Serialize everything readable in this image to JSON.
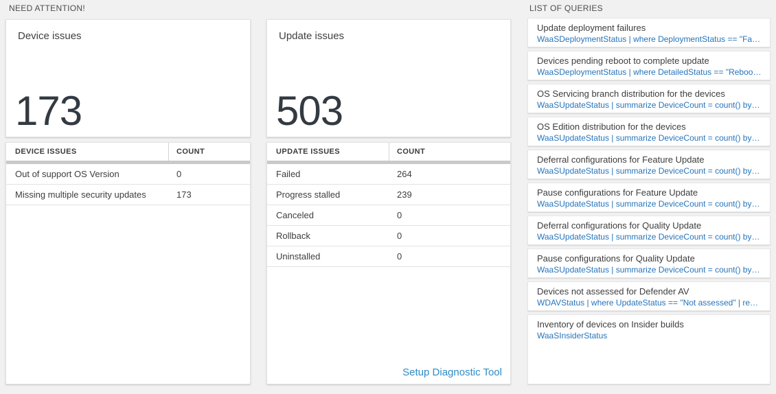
{
  "need_attention": {
    "section_title": "NEED ATTENTION!",
    "device_card": {
      "title": "Device issues",
      "count": "173"
    },
    "device_table": {
      "headers": [
        "DEVICE ISSUES",
        "COUNT"
      ],
      "rows": [
        [
          "Out of support OS Version",
          "0"
        ],
        [
          "Missing multiple security updates",
          "173"
        ]
      ]
    },
    "update_card": {
      "title": "Update issues",
      "count": "503"
    },
    "update_table": {
      "headers": [
        "UPDATE ISSUES",
        "COUNT"
      ],
      "rows": [
        [
          "Failed",
          "264"
        ],
        [
          "Progress stalled",
          "239"
        ],
        [
          "Canceled",
          "0"
        ],
        [
          "Rollback",
          "0"
        ],
        [
          "Uninstalled",
          "0"
        ]
      ]
    },
    "setup_link": "Setup Diagnostic Tool"
  },
  "queries": {
    "section_title": "LIST OF QUERIES",
    "items": [
      {
        "title": "Update deployment failures",
        "query": "WaaSDeploymentStatus | where DeploymentStatus == \"Failed\" |..."
      },
      {
        "title": "Devices pending reboot to complete update",
        "query": "WaaSDeploymentStatus | where DetailedStatus == \"Reboot pend..."
      },
      {
        "title": "OS Servicing branch distribution for the devices",
        "query": "WaaSUpdateStatus | summarize DeviceCount = count() by OSSer..."
      },
      {
        "title": "OS Edition distribution for the devices",
        "query": "WaaSUpdateStatus | summarize DeviceCount = count() by OSEdit..."
      },
      {
        "title": "Deferral configurations for Feature Update",
        "query": "WaaSUpdateStatus | summarize DeviceCount = count() by Featur..."
      },
      {
        "title": "Pause configurations for Feature Update",
        "query": "WaaSUpdateStatus | summarize DeviceCount = count() by Featur..."
      },
      {
        "title": "Deferral configurations for Quality Update",
        "query": "WaaSUpdateStatus | summarize DeviceCount = count() by Qualit..."
      },
      {
        "title": "Pause configurations for Quality Update",
        "query": "WaaSUpdateStatus | summarize DeviceCount = count() by Qualit..."
      },
      {
        "title": "Devices not assessed for Defender AV",
        "query": "WDAVStatus | where UpdateStatus == \"Not assessed\" | render ta..."
      },
      {
        "title": "Inventory of devices on Insider builds",
        "query": "WaaSInsiderStatus"
      }
    ]
  },
  "colors": {
    "page_bg": "#f1f1f1",
    "card_bg": "#ffffff",
    "link_blue": "#2e8bc8",
    "query_blue": "#2574bb",
    "big_number": "#333a41",
    "header_bar": "#c9c9c9"
  }
}
